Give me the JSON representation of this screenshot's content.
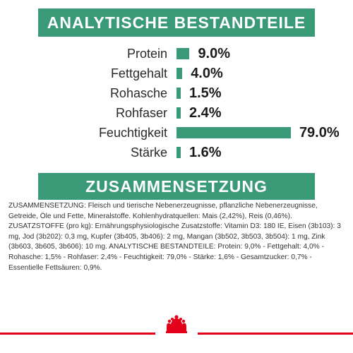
{
  "header1": "ANALYTISCHE BESTANDTEILE",
  "header2": "ZUSAMMENSETZUNG",
  "nutrients": [
    {
      "label": "Protein",
      "value": "9.0%",
      "percent": 9.0
    },
    {
      "label": "Fettgehalt",
      "value": "4.0%",
      "percent": 4.0
    },
    {
      "label": "Rohasche",
      "value": "1.5%",
      "percent": 1.5
    },
    {
      "label": "Rohfaser",
      "value": "2.4%",
      "percent": 2.4
    },
    {
      "label": "Feuchtigkeit",
      "value": "79.0%",
      "percent": 79.0
    },
    {
      "label": "Stärke",
      "value": "1.6%",
      "percent": 1.6
    }
  ],
  "ingredients_text": "ZUSAMMENSETZUNG: Fleisch und tierische Nebenerzeugnisse, pflanzliche Nebenerzeugnisse, Getreide, Öle und Fette, Mineralstoffe. Kohlenhydratquellen: Mais (2,42%), Reis (0,46%). ZUSATZSTOFFE (pro kg): Ernährungsphysiologische Zusatzstoffe: Vitamin D3: 180 IE, Eisen (3b103): 3 mg, Jod (3b202): 0,3 mg, Kupfer (3b405, 3b406): 2 mg, Mangan (3b502, 3b503, 3b504): 1 mg, Zink (3b603, 3b605, 3b606): 10 mg. ANALYTISCHE BESTANDTEILE: Protein: 9,0% - Fettgehalt: 4,0% - Rohasche: 1,5% - Rohfaser: 2,4% - Feuchtigkeit: 79,0% - Stärke: 1,6% - Gesamtzucker: 0,7% - Essentielle Fettsäuren: 0,9%.",
  "colors": {
    "accent": "#3a9a78",
    "brand_red": "#e2001a"
  },
  "logo_icon": "royal-canin-crown-icon"
}
